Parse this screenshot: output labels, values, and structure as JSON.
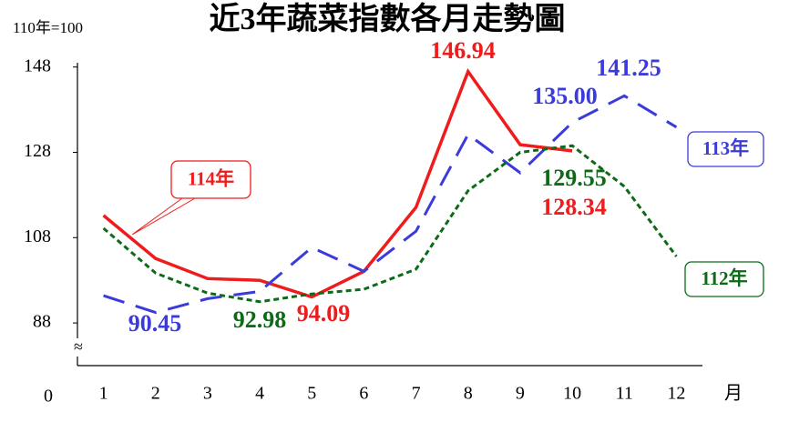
{
  "chart_data": {
    "type": "line",
    "title": "近3年蔬菜指數各月走勢圖",
    "subtitle": "110年=100",
    "x_label": "月",
    "y_break_label": "0",
    "y_break_symbol": "≈",
    "x": [
      1,
      2,
      3,
      4,
      5,
      6,
      7,
      8,
      9,
      10,
      11,
      12
    ],
    "xlim": [
      0.5,
      12.5
    ],
    "xticks": [
      1,
      2,
      3,
      4,
      5,
      6,
      7,
      8,
      9,
      10,
      11,
      12
    ],
    "ylim": [
      78,
      149
    ],
    "yticks": [
      88,
      108,
      128,
      148
    ],
    "grid": false,
    "series": [
      {
        "name": "114年",
        "color": "#ee1c1c",
        "style": "solid",
        "values": [
          113.2,
          103.1,
          98.4,
          98.0,
          94.09,
          100.1,
          115.1,
          146.94,
          129.8,
          128.34,
          null,
          null
        ],
        "value_labels": [
          null,
          null,
          null,
          null,
          "94.09",
          null,
          null,
          "146.94",
          null,
          "128.34",
          null,
          null
        ]
      },
      {
        "name": "113年",
        "color": "#3b3bdc",
        "style": "dashed",
        "values": [
          94.4,
          90.45,
          93.7,
          95.4,
          105.7,
          100.1,
          109.5,
          132.2,
          123.2,
          135.0,
          141.25,
          133.9
        ],
        "value_labels": [
          null,
          "90.45",
          null,
          null,
          null,
          null,
          null,
          null,
          null,
          "135.00",
          "141.25",
          null
        ]
      },
      {
        "name": "112年",
        "color": "#0b6b16",
        "style": "dotted",
        "values": [
          110.2,
          99.7,
          95.0,
          92.98,
          94.8,
          95.9,
          100.6,
          119.0,
          128.0,
          129.55,
          120.0,
          103.6
        ],
        "value_labels": [
          null,
          null,
          null,
          "92.98",
          null,
          null,
          null,
          null,
          null,
          "129.55",
          null,
          null
        ]
      }
    ]
  }
}
